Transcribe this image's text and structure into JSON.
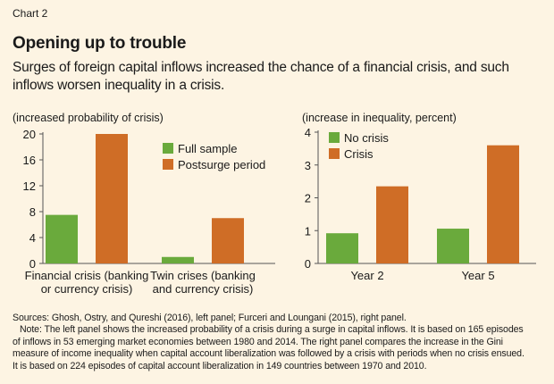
{
  "header": {
    "chart_label": "Chart 2",
    "title": "Opening up to trouble",
    "subtitle": "Surges of foreign capital inflows increased the chance of a financial crisis, and such inflows worsen inequality in a crisis."
  },
  "colors": {
    "green": "#6aaa3c",
    "orange": "#cf6d26",
    "axis": "#555555",
    "background": "#fdf4e3"
  },
  "chart_data": [
    {
      "type": "bar",
      "ylabel": "(increased probability of crisis)",
      "ylim": [
        0,
        20
      ],
      "yticks": [
        0,
        4,
        8,
        12,
        16,
        20
      ],
      "categories": [
        [
          "Financial crisis (banking",
          "or currency crisis)"
        ],
        [
          "Twin crises (banking",
          "and currency crisis)"
        ]
      ],
      "series": [
        {
          "name": "Full sample",
          "color": "#6aaa3c",
          "values": [
            7.5,
            1.0
          ]
        },
        {
          "name": "Postsurge period",
          "color": "#cf6d26",
          "values": [
            20.0,
            7.0
          ]
        }
      ],
      "legend": "upper-right"
    },
    {
      "type": "bar",
      "ylabel": "(increase in inequality, percent)",
      "ylim": [
        0,
        4
      ],
      "yticks": [
        0,
        1,
        2,
        3,
        4
      ],
      "categories": [
        [
          "Year 2"
        ],
        [
          "Year 5"
        ]
      ],
      "series": [
        {
          "name": "No crisis",
          "color": "#6aaa3c",
          "values": [
            0.92,
            1.06
          ]
        },
        {
          "name": "Crisis",
          "color": "#cf6d26",
          "values": [
            2.35,
            3.6
          ]
        }
      ],
      "legend": "upper-left"
    }
  ],
  "notes": {
    "sources": "Sources: Ghosh, Ostry, and Qureshi (2016), left panel; Furceri and Loungani (2015), right panel.",
    "note_lines": [
      "Note: The left panel shows the increased probability of a crisis during a surge in capital inflows. It is based on 165 episodes",
      "of inflows in 53 emerging market economies between 1980 and 2014. The right panel compares the increase in the Gini",
      "measure of income inequality when capital account liberalization was followed by a crisis with periods when no crisis ensued.",
      "It is based on 224 episodes of capital account liberalization in 149 countries between 1970 and 2010."
    ]
  }
}
